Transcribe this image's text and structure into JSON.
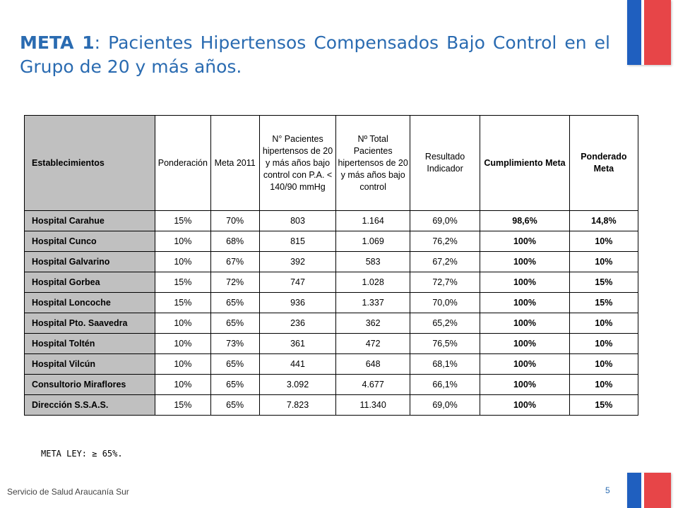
{
  "title": {
    "bold": "META 1",
    "rest": ": Pacientes Hipertensos Compensados Bajo Control en el Grupo de 20 y más años."
  },
  "table": {
    "headers": {
      "establecimientos": "Establecimientos",
      "ponderacion": "Ponderación",
      "meta": "Meta 2011",
      "n_pacientes": "N° Pacientes hipertensos de 20 y más años bajo control con P.A. < 140/90 mmHg",
      "n_total": "Nº Total Pacientes hipertensos de 20 y más años bajo control",
      "resultado": "Resultado Indicador",
      "cumplimiento": "Cumplimiento Meta",
      "ponderado": "Ponderado Meta"
    },
    "rows": [
      [
        "Hospital Carahue",
        "15%",
        "70%",
        "803",
        "1.164",
        "69,0%",
        "98,6%",
        "14,8%"
      ],
      [
        "Hospital Cunco",
        "10%",
        "68%",
        "815",
        "1.069",
        "76,2%",
        "100%",
        "10%"
      ],
      [
        "Hospital Galvarino",
        "10%",
        "67%",
        "392",
        "583",
        "67,2%",
        "100%",
        "10%"
      ],
      [
        "Hospital Gorbea",
        "15%",
        "72%",
        "747",
        "1.028",
        "72,7%",
        "100%",
        "15%"
      ],
      [
        "Hospital Loncoche",
        "15%",
        "65%",
        "936",
        "1.337",
        "70,0%",
        "100%",
        "15%"
      ],
      [
        "Hospital Pto. Saavedra",
        "10%",
        "65%",
        "236",
        "362",
        "65,2%",
        "100%",
        "10%"
      ],
      [
        "Hospital Toltén",
        "10%",
        "73%",
        "361",
        "472",
        "76,5%",
        "100%",
        "10%"
      ],
      [
        "Hospital Vilcún",
        "10%",
        "65%",
        "441",
        "648",
        "68,1%",
        "100%",
        "10%"
      ],
      [
        "Consultorio Miraflores",
        "10%",
        "65%",
        "3.092",
        "4.677",
        "66,1%",
        "100%",
        "10%"
      ],
      [
        "Dirección S.S.A.S.",
        "15%",
        "65%",
        "7.823",
        "11.340",
        "69,0%",
        "100%",
        "15%"
      ]
    ]
  },
  "note": "META LEY: ≥ 65%.",
  "footer": "Servicio de Salud Araucanía Sur",
  "page_number": "5",
  "colors": {
    "title": "#2a6bb1",
    "flag_blue": "#1f5fbf",
    "flag_red": "#e74548",
    "header_gray": "#c0c0c0"
  }
}
